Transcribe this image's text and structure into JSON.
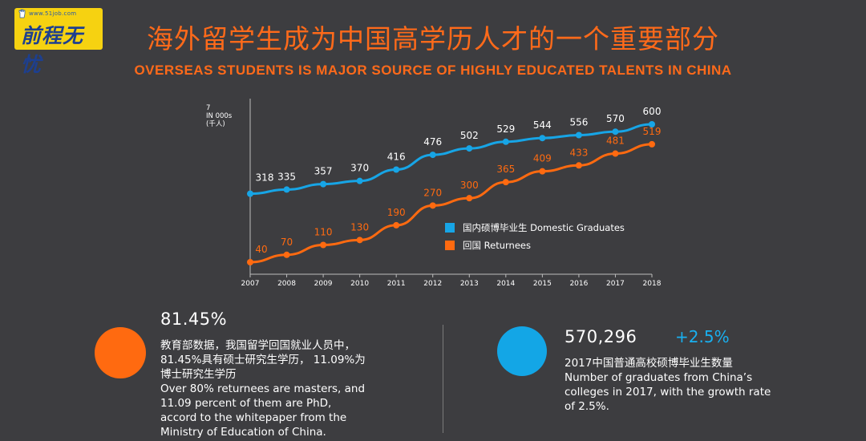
{
  "logo": {
    "url": "www.51job.com",
    "text": "前程无忧"
  },
  "title_cn": "海外留学生成为中国高学历人才的一个重要部分",
  "title_en": "OVERSEAS STUDENTS IS MAJOR SOURCE OF HIGHLY EDUCATED TALENTS IN CHINA",
  "chart_data": {
    "type": "line",
    "ylabel": [
      "7",
      "IN 000s",
      "(千人)"
    ],
    "categories": [
      "2007",
      "2008",
      "2009",
      "2010",
      "2011",
      "2012",
      "2013",
      "2014",
      "2015",
      "2016",
      "2017",
      "2018"
    ],
    "series": [
      {
        "name": "国内硕博毕业生 Domestic Graduates",
        "color": "#17a5e6",
        "values": [
          318,
          335,
          357,
          370,
          416,
          476,
          502,
          529,
          544,
          556,
          570,
          600
        ]
      },
      {
        "name": "回国 Returnees",
        "color": "#ff6a10",
        "values": [
          40,
          70,
          110,
          130,
          190,
          270,
          300,
          365,
          409,
          433,
          481,
          519
        ]
      }
    ],
    "legend_position": "center-right",
    "grid": false
  },
  "left_stat": {
    "value": "81.45%",
    "color": "#ff6a10",
    "lines": [
      "教育部数据，我国留学回国就业人员中，",
      "81.45%具有硕士研究生学历， 11.09%为",
      "博士研究生学历",
      "Over 80% returnees are masters, and",
      "11.09 percent of them are  PhD,",
      "accord to the whitepaper from the",
      "Ministry of Education of China."
    ]
  },
  "right_stat": {
    "value": "570,296",
    "growth": "+2.5%",
    "color": "#13a6e6",
    "lines": [
      "2017中国普通高校硕博毕业生数量",
      "Number of graduates from China’s",
      "colleges in 2017, with the growth rate",
      "of 2.5%."
    ]
  }
}
